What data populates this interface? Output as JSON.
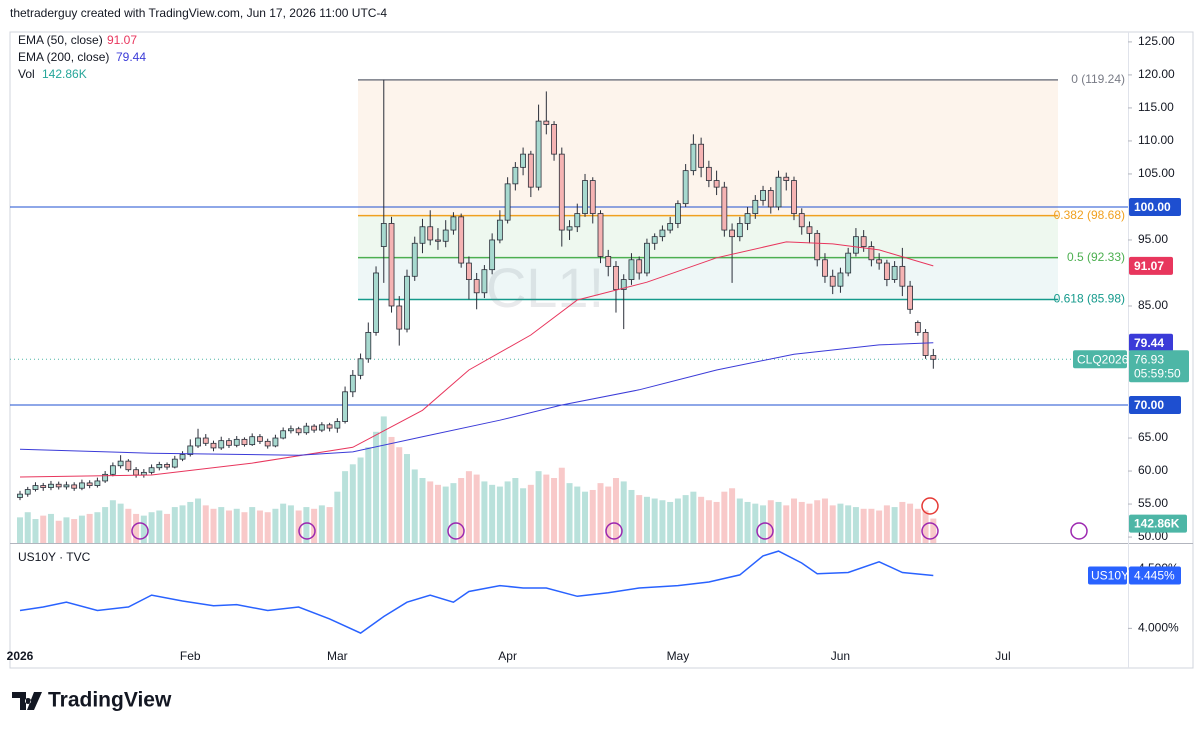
{
  "header": "thetraderguy created with TradingView.com, Jun 17, 2026 11:00 UTC-4",
  "brand": "TradingView",
  "chart_data": [
    {
      "type": "candlestick",
      "watermark": "CL1!",
      "symbol": "CLQ2026",
      "countdown": "05:59:50",
      "up_color": "#a7d9cf",
      "down_color": "#f5b3b3",
      "categories": [
        "2026",
        null,
        null,
        null,
        null,
        null,
        null,
        null,
        null,
        null,
        null,
        null,
        null,
        null,
        null,
        null,
        null,
        null,
        null,
        null,
        null,
        null,
        "Feb",
        null,
        null,
        null,
        null,
        null,
        null,
        null,
        null,
        null,
        null,
        null,
        null,
        null,
        null,
        null,
        null,
        null,
        null,
        "Mar",
        null,
        null,
        null,
        null,
        null,
        null,
        null,
        null,
        null,
        null,
        null,
        null,
        null,
        null,
        null,
        null,
        null,
        null,
        null,
        null,
        null,
        "Apr",
        null,
        null,
        null,
        null,
        null,
        null,
        null,
        null,
        null,
        null,
        null,
        null,
        null,
        null,
        null,
        null,
        null,
        null,
        null,
        null,
        null,
        "May",
        null,
        null,
        null,
        null,
        null,
        null,
        null,
        null,
        null,
        null,
        null,
        null,
        null,
        null,
        null,
        null,
        null,
        null,
        null,
        null,
        "Jun",
        null,
        null,
        null,
        null,
        null,
        null,
        null,
        null,
        null,
        null,
        null,
        null,
        null,
        null,
        null,
        null,
        null,
        null,
        null,
        null,
        "Jul",
        null,
        null
      ],
      "open": [
        56.0,
        56.5,
        57.2,
        57.8,
        57.5,
        58.0,
        57.6,
        57.9,
        57.4,
        58.2,
        57.8,
        58.5,
        59.5,
        60.8,
        61.5,
        60.2,
        59.4,
        59.8,
        60.5,
        61.0,
        60.6,
        61.8,
        62.5,
        63.8,
        65.0,
        64.2,
        63.5,
        64.6,
        63.9,
        64.8,
        64.0,
        65.2,
        64.5,
        63.8,
        65.0,
        66.1,
        66.4,
        65.8,
        66.8,
        66.2,
        67.0,
        66.5,
        67.5,
        72.0,
        74.5,
        77.0,
        81.0,
        94.0,
        97.5,
        85.0,
        81.5,
        89.5,
        94.5,
        97.0,
        95.0,
        94.8,
        96.5,
        98.5,
        91.5,
        89.0,
        87.0,
        90.5,
        95.0,
        98.0,
        103.5,
        106.0,
        108.0,
        103.0,
        113.0,
        112.5,
        108.0,
        96.5,
        97.0,
        99.0,
        104.0,
        99.0,
        92.5,
        91.0,
        87.5,
        89.0,
        92.0,
        90.0,
        94.5,
        95.5,
        96.5,
        97.5,
        100.5,
        105.5,
        109.5,
        106.0,
        104.0,
        103.0,
        96.5,
        95.5,
        97.5,
        99.0,
        101.0,
        102.5,
        100.0,
        104.5,
        104.0,
        99.0,
        97.0,
        96.0,
        92.0,
        89.5,
        88.0,
        90.0,
        93.0,
        95.5,
        94.0,
        92.0,
        91.5,
        89.0,
        91.0,
        88.0,
        82.5,
        81.0,
        77.5,
        null,
        null,
        null,
        null,
        null,
        null,
        null,
        null,
        null,
        null,
        null
      ],
      "high": [
        57.0,
        57.6,
        58.3,
        58.2,
        58.5,
        58.4,
        58.4,
        58.3,
        58.7,
        58.6,
        59.0,
        60.0,
        61.3,
        62.4,
        61.8,
        60.6,
        60.3,
        61.0,
        61.4,
        61.3,
        62.3,
        63.0,
        64.8,
        66.4,
        65.6,
        64.6,
        65.2,
        65.0,
        65.3,
        65.1,
        65.7,
        65.6,
        64.9,
        65.5,
        66.6,
        66.9,
        66.7,
        67.3,
        67.1,
        67.4,
        67.3,
        68.0,
        72.8,
        75.3,
        77.8,
        82.5,
        91.0,
        119.24,
        98.5,
        86.5,
        90.5,
        95.5,
        98.2,
        99.5,
        96.8,
        98.0,
        99.2,
        99.0,
        92.5,
        90.0,
        91.2,
        96.0,
        99.5,
        104.5,
        106.8,
        109.0,
        108.5,
        115.5,
        117.5,
        113.0,
        109.0,
        98.0,
        100.5,
        105.0,
        104.5,
        99.5,
        93.5,
        91.8,
        89.8,
        93.0,
        92.5,
        95.2,
        96.0,
        97.2,
        98.5,
        101.0,
        106.5,
        111.0,
        110.5,
        107.0,
        105.5,
        103.8,
        97.5,
        98.5,
        100.0,
        101.8,
        103.2,
        103.0,
        105.5,
        105.2,
        104.6,
        99.8,
        97.8,
        96.5,
        93.0,
        90.5,
        90.8,
        93.8,
        96.8,
        96.5,
        94.8,
        93.0,
        92.0,
        91.8,
        93.8,
        88.8,
        82.8,
        81.5,
        78.5,
        null,
        null,
        null,
        null,
        null,
        null,
        null,
        null,
        null,
        null,
        null
      ],
      "low": [
        55.6,
        56.1,
        56.9,
        57.0,
        57.1,
        57.2,
        57.2,
        57.0,
        57.1,
        57.4,
        57.5,
        58.2,
        59.2,
        60.4,
        59.9,
        59.0,
        59.0,
        59.5,
        60.1,
        60.2,
        60.4,
        61.5,
        62.2,
        63.5,
        63.8,
        63.0,
        63.2,
        63.5,
        63.6,
        63.7,
        63.8,
        64.1,
        63.4,
        63.6,
        64.8,
        65.7,
        65.4,
        65.5,
        65.8,
        65.9,
        66.0,
        65.8,
        67.2,
        71.2,
        73.9,
        76.4,
        80.5,
        88.5,
        84.0,
        79.0,
        81.0,
        88.8,
        93.0,
        94.2,
        93.5,
        93.9,
        95.8,
        90.8,
        86.0,
        84.5,
        86.2,
        89.8,
        94.5,
        97.5,
        102.5,
        104.8,
        101.5,
        102.5,
        111.0,
        107.0,
        94.0,
        95.0,
        96.2,
        98.5,
        97.5,
        91.5,
        89.5,
        84.0,
        81.5,
        88.2,
        89.0,
        89.5,
        93.5,
        94.8,
        96.0,
        96.8,
        100.0,
        104.8,
        104.5,
        103.0,
        101.8,
        95.5,
        88.5,
        94.8,
        96.5,
        98.2,
        100.2,
        99.0,
        99.5,
        102.5,
        98.0,
        95.8,
        94.5,
        91.0,
        88.5,
        86.8,
        87.0,
        89.5,
        92.5,
        93.2,
        91.0,
        90.5,
        88.0,
        88.5,
        86.5,
        83.8,
        80.5,
        77.0,
        75.5,
        null,
        null,
        null,
        null,
        null,
        null,
        null,
        null,
        null,
        null,
        null
      ],
      "close": [
        56.5,
        57.2,
        57.8,
        57.5,
        58.0,
        57.6,
        57.9,
        57.4,
        58.2,
        57.8,
        58.5,
        59.5,
        60.8,
        61.5,
        60.2,
        59.4,
        59.8,
        60.5,
        61.0,
        60.6,
        61.8,
        62.5,
        63.8,
        65.0,
        64.2,
        63.5,
        64.6,
        63.9,
        64.8,
        64.0,
        65.2,
        64.5,
        63.8,
        65.0,
        66.1,
        66.4,
        65.8,
        66.8,
        66.2,
        67.0,
        66.5,
        67.5,
        72.0,
        74.5,
        77.0,
        81.0,
        90.0,
        97.5,
        85.0,
        81.5,
        89.5,
        94.5,
        97.0,
        95.0,
        94.8,
        96.5,
        98.5,
        91.5,
        89.0,
        87.0,
        90.5,
        95.0,
        98.0,
        103.5,
        106.0,
        108.0,
        103.0,
        113.0,
        112.5,
        108.0,
        96.5,
        97.0,
        99.0,
        104.0,
        99.0,
        92.5,
        91.0,
        87.5,
        89.0,
        92.0,
        90.0,
        94.5,
        95.5,
        96.5,
        97.5,
        100.5,
        105.5,
        109.5,
        106.0,
        104.0,
        103.0,
        96.5,
        95.5,
        97.5,
        99.0,
        101.0,
        102.5,
        100.0,
        104.5,
        104.0,
        99.0,
        97.0,
        96.0,
        92.0,
        89.5,
        88.0,
        90.0,
        93.0,
        95.5,
        94.0,
        92.0,
        91.5,
        89.0,
        91.0,
        88.0,
        84.5,
        81.0,
        77.5,
        76.93,
        null,
        null,
        null,
        null,
        null,
        null,
        null,
        null,
        null,
        null,
        null
      ],
      "close_color": "#4db6a6",
      "volume": {
        "name": "Vol",
        "ylim": [
          0,
          760
        ],
        "last_label": "142.86K",
        "up_color": "#b9e1db",
        "down_color": "#f8c9c9",
        "values": [
          150,
          180,
          140,
          160,
          170,
          130,
          150,
          140,
          160,
          170,
          180,
          210,
          250,
          230,
          200,
          170,
          160,
          180,
          190,
          170,
          210,
          220,
          240,
          260,
          220,
          200,
          210,
          190,
          200,
          180,
          210,
          190,
          180,
          200,
          230,
          220,
          190,
          210,
          200,
          220,
          210,
          300,
          420,
          460,
          500,
          560,
          650,
          740,
          620,
          560,
          520,
          430,
          380,
          360,
          340,
          330,
          350,
          380,
          420,
          400,
          360,
          340,
          330,
          360,
          380,
          320,
          340,
          420,
          400,
          380,
          440,
          350,
          330,
          300,
          310,
          350,
          330,
          380,
          360,
          310,
          280,
          270,
          260,
          250,
          240,
          260,
          280,
          300,
          270,
          250,
          240,
          300,
          320,
          260,
          240,
          230,
          220,
          250,
          240,
          220,
          260,
          240,
          230,
          250,
          260,
          220,
          230,
          220,
          210,
          200,
          200,
          190,
          220,
          210,
          240,
          230,
          200,
          190,
          142.86,
          null,
          null,
          null,
          null,
          null,
          null,
          null,
          null,
          null,
          null,
          null
        ]
      },
      "ema": [
        {
          "name": "EMA (50, close)",
          "color": "#e8365d",
          "x": [
            0,
            17,
            30,
            43,
            52,
            58,
            66,
            72,
            81,
            90,
            99,
            105,
            111,
            118
          ],
          "values": [
            59.1,
            59.4,
            61.2,
            63.6,
            69.2,
            75.3,
            80.6,
            85.9,
            88.6,
            92.3,
            94.7,
            94.4,
            93.5,
            91.07
          ]
        },
        {
          "name": "EMA (200, close)",
          "color": "#3b3bd8",
          "x": [
            0,
            17,
            36,
            43,
            52,
            62,
            70,
            80,
            90,
            100,
            111,
            118
          ],
          "values": [
            63.3,
            62.7,
            62.4,
            62.9,
            65.2,
            67.7,
            70.0,
            72.3,
            75.3,
            77.7,
            79.1,
            79.44
          ]
        }
      ],
      "fib": [
        {
          "value": 119.24,
          "label": "0 (119.24)",
          "color": "#787b86",
          "fill": "#fdf4ec"
        },
        {
          "value": 98.68,
          "label": "0.382 (98.68)",
          "color": "#f0a020",
          "fill": "#eef8ef"
        },
        {
          "value": 92.33,
          "label": "0.5 (92.33)",
          "color": "#4caf50",
          "fill": "#eef7f7"
        },
        {
          "value": 85.98,
          "label": "0.618 (85.98)",
          "color": "#159a8c"
        }
      ],
      "hlines": [
        {
          "value": 100,
          "label": "100.00",
          "color": "#1e4fd0"
        },
        {
          "value": 70,
          "label": "70.00",
          "color": "#1e4fd0"
        }
      ],
      "ylim": [
        49.1,
        126.5
      ],
      "yticks": [
        {
          "value": 125,
          "label": "125.00"
        },
        {
          "value": 120,
          "label": "120.00"
        },
        {
          "value": 115,
          "label": "115.00"
        },
        {
          "value": 110,
          "label": "110.00"
        },
        {
          "value": 105,
          "label": "105.00"
        },
        {
          "value": 95,
          "label": "95.00"
        },
        {
          "value": 85,
          "label": "85.00"
        },
        {
          "value": 65,
          "label": "65.00"
        },
        {
          "value": 60,
          "label": "60.00"
        },
        {
          "value": 55,
          "label": "55.00"
        },
        {
          "value": 50,
          "label": "50.00"
        }
      ]
    },
    {
      "type": "line",
      "title": "US10Y · TVC",
      "ylim": [
        3.86,
        4.71
      ],
      "yticks": [
        {
          "value": 4.5,
          "label": "4.500%"
        },
        {
          "value": 4.0,
          "label": "4.000%"
        }
      ],
      "series": [
        {
          "name": "US10Y",
          "color": "#2962ff",
          "last_label": "4.445%",
          "x": [
            0,
            3,
            6,
            10,
            14,
            17,
            21,
            25,
            28,
            32,
            36,
            40,
            44,
            47,
            50,
            53,
            56,
            58,
            62,
            65,
            68,
            72,
            76,
            80,
            85,
            89,
            93,
            96,
            98,
            101,
            103,
            107,
            111,
            114,
            118
          ],
          "values": [
            4.15,
            4.18,
            4.22,
            4.15,
            4.18,
            4.28,
            4.23,
            4.19,
            4.2,
            4.15,
            4.18,
            4.08,
            3.96,
            4.1,
            4.22,
            4.28,
            4.22,
            4.31,
            4.36,
            4.34,
            4.34,
            4.27,
            4.3,
            4.34,
            4.36,
            4.39,
            4.45,
            4.61,
            4.65,
            4.55,
            4.46,
            4.47,
            4.56,
            4.47,
            4.445
          ]
        }
      ]
    }
  ]
}
